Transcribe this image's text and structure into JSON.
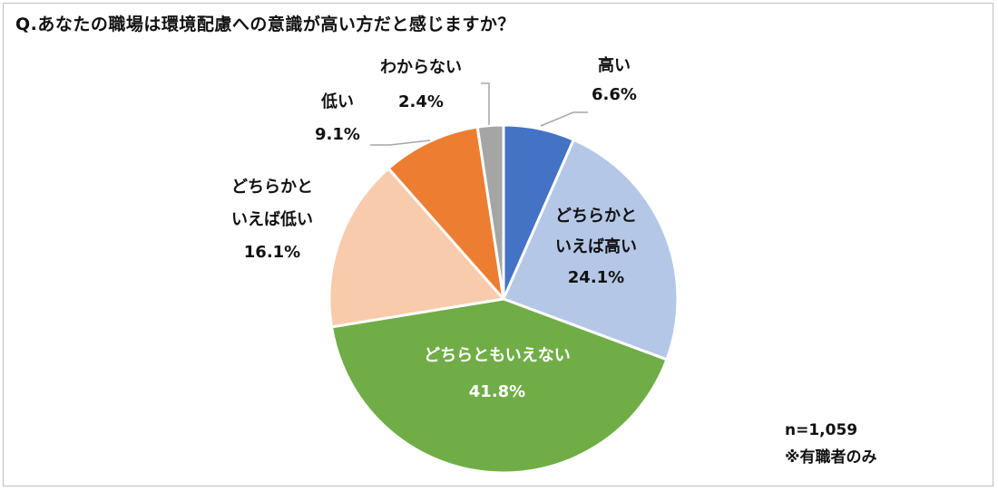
{
  "title": "Q.あなたの職場は環境配慮への意識が高い方だと感じますか？",
  "note": {
    "n": "n=1,059",
    "scope": "※有職者のみ"
  },
  "chart_data": {
    "type": "pie",
    "start_angle_deg": 0,
    "direction": "clockwise",
    "slices": [
      {
        "label": [
          "高い"
        ],
        "value": 6.6,
        "value_label": "6.6%",
        "color": "#4472C4",
        "label_color": "#111111"
      },
      {
        "label": [
          "どちらかと",
          "いえば高い"
        ],
        "value": 24.1,
        "value_label": "24.1%",
        "color": "#B4C7E7",
        "label_color": "#111111"
      },
      {
        "label": [
          "どちらともいえない"
        ],
        "value": 41.8,
        "value_label": "41.8%",
        "color": "#70AD47",
        "label_color": "#ffffff"
      },
      {
        "label": [
          "どちらかと",
          "いえば低い"
        ],
        "value": 16.1,
        "value_label": "16.1%",
        "color": "#F8CBAD",
        "label_color": "#111111"
      },
      {
        "label": [
          "低い"
        ],
        "value": 9.1,
        "value_label": "9.1%",
        "color": "#ED7D31",
        "label_color": "#111111"
      },
      {
        "label": [
          "わからない"
        ],
        "value": 2.4,
        "value_label": "2.4%",
        "color": "#A5A5A5",
        "label_color": "#111111"
      }
    ]
  }
}
